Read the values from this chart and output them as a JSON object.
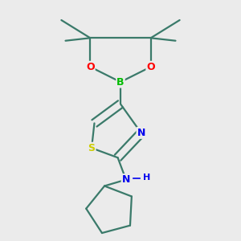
{
  "background_color": "#ebebeb",
  "bond_color": "#3a7a6a",
  "atom_colors": {
    "B": "#00bb00",
    "O": "#ff0000",
    "N": "#0000ee",
    "S": "#cccc00",
    "H": "#0000ee"
  },
  "figsize": [
    3.0,
    3.0
  ],
  "dpi": 100
}
